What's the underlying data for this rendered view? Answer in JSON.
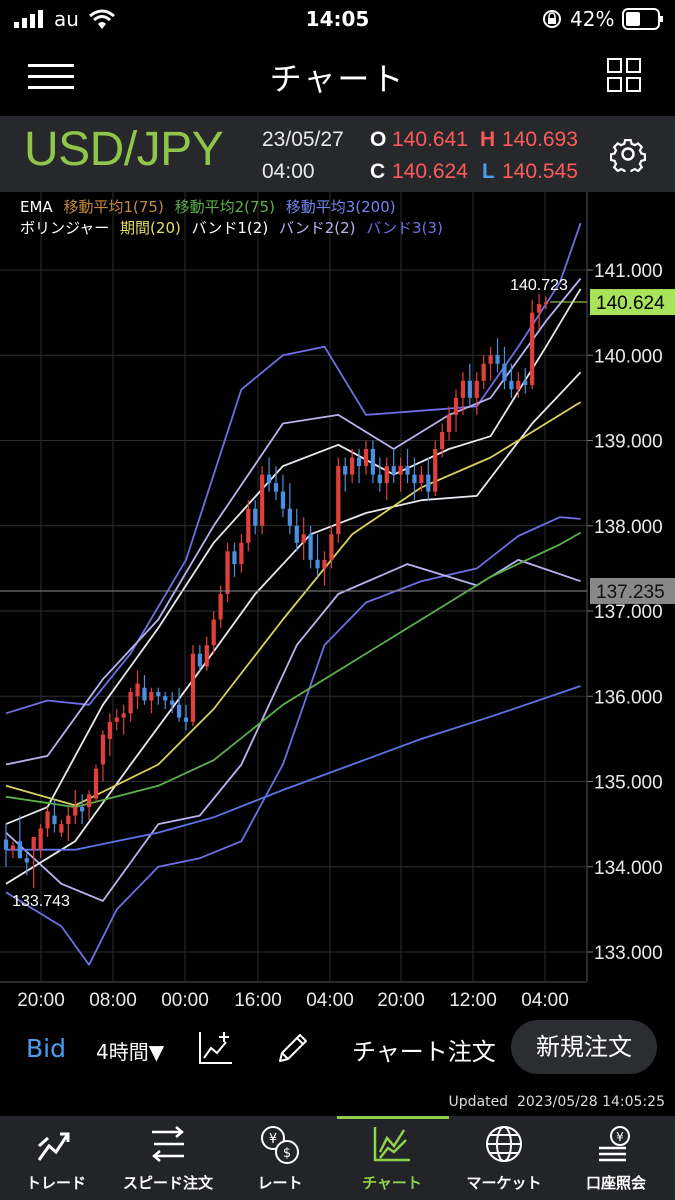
{
  "status_bar": {
    "carrier": "au",
    "time": "14:05",
    "battery": "42%"
  },
  "nav": {
    "title": "チャート"
  },
  "quote": {
    "pair": "USD/JPY",
    "date": "23/05/27",
    "time": "04:00",
    "open_label": "O",
    "open": "140.641",
    "high_label": "H",
    "high": "140.693",
    "close_label": "C",
    "close": "140.624",
    "low_label": "L",
    "low": "140.545"
  },
  "legend": {
    "ema_label": "EMA",
    "ema1": "移動平均1(75)",
    "ema2": "移動平均2(75)",
    "ema3": "移動平均3(200)",
    "bb_label": "ボリンジャー",
    "bb_period": "期間(20)",
    "bb_band1": "バンド1(2)",
    "bb_band2": "バンド2(2)",
    "bb_band3": "バンド3(3)"
  },
  "colors": {
    "bull": "#e0403c",
    "bear": "#4a8fe0",
    "ema1": "#d7d35a",
    "ema2": "#5ab04a",
    "ema3": "#5b74e6",
    "band1": "#e8e8f0",
    "band2": "#b9b3f0",
    "band3": "#6f6ee4",
    "current_price_bg": "#a9e35b",
    "ref_price_bg": "#888888"
  },
  "chart_data": {
    "type": "candlestick",
    "y_ticks": [
      "141.000",
      "140.000",
      "139.000",
      "138.000",
      "137.000",
      "136.000",
      "135.000",
      "134.000",
      "133.000"
    ],
    "x_ticks": [
      "20:00",
      "08:00",
      "00:00",
      "16:00",
      "04:00",
      "20:00",
      "12:00",
      "04:00"
    ],
    "ylim": [
      132.6,
      141.9
    ],
    "current_price": "140.624",
    "ref_price": "137.235",
    "high_marker": "140.723",
    "low_marker": "133.743",
    "ema1": [
      [
        0,
        134.95
      ],
      [
        10,
        134.72
      ],
      [
        22,
        135.2
      ],
      [
        30,
        135.85
      ],
      [
        40,
        136.9
      ],
      [
        50,
        137.9
      ],
      [
        60,
        138.45
      ],
      [
        70,
        138.8
      ],
      [
        83,
        139.45
      ]
    ],
    "ema2": [
      [
        0,
        134.82
      ],
      [
        10,
        134.7
      ],
      [
        22,
        134.95
      ],
      [
        30,
        135.25
      ],
      [
        40,
        135.9
      ],
      [
        50,
        136.4
      ],
      [
        60,
        136.9
      ],
      [
        70,
        137.4
      ],
      [
        80,
        137.78
      ],
      [
        83,
        137.92
      ]
    ],
    "ema3": [
      [
        0,
        134.2
      ],
      [
        10,
        134.2
      ],
      [
        22,
        134.4
      ],
      [
        30,
        134.58
      ],
      [
        40,
        134.9
      ],
      [
        50,
        135.2
      ],
      [
        60,
        135.5
      ],
      [
        70,
        135.76
      ],
      [
        83,
        136.12
      ]
    ],
    "band1_upper": [
      [
        0,
        134.5
      ],
      [
        6,
        134.7
      ],
      [
        14,
        135.9
      ],
      [
        22,
        136.8
      ],
      [
        30,
        137.8
      ],
      [
        40,
        138.7
      ],
      [
        48,
        138.95
      ],
      [
        56,
        138.6
      ],
      [
        64,
        138.9
      ],
      [
        70,
        139.05
      ],
      [
        78,
        140.1
      ],
      [
        83,
        140.78
      ]
    ],
    "band1_lower": [
      [
        0,
        133.8
      ],
      [
        10,
        134.3
      ],
      [
        18,
        135.2
      ],
      [
        28,
        136.3
      ],
      [
        36,
        137.2
      ],
      [
        44,
        137.9
      ],
      [
        52,
        138.15
      ],
      [
        60,
        138.3
      ],
      [
        68,
        138.35
      ],
      [
        76,
        139.2
      ],
      [
        83,
        139.8
      ]
    ],
    "band2_upper": [
      [
        0,
        135.2
      ],
      [
        6,
        135.3
      ],
      [
        14,
        136.2
      ],
      [
        22,
        136.9
      ],
      [
        30,
        138.0
      ],
      [
        40,
        139.2
      ],
      [
        48,
        139.3
      ],
      [
        56,
        138.9
      ],
      [
        64,
        139.3
      ],
      [
        70,
        139.5
      ],
      [
        78,
        140.4
      ],
      [
        83,
        140.9
      ]
    ],
    "band2_lower": [
      [
        0,
        134.4
      ],
      [
        8,
        133.8
      ],
      [
        14,
        133.6
      ],
      [
        22,
        134.5
      ],
      [
        28,
        134.6
      ],
      [
        34,
        135.2
      ],
      [
        42,
        136.6
      ],
      [
        48,
        137.2
      ],
      [
        58,
        137.55
      ],
      [
        68,
        137.3
      ],
      [
        74,
        137.6
      ],
      [
        83,
        137.35
      ]
    ],
    "band3_upper": [
      [
        0,
        135.8
      ],
      [
        6,
        135.95
      ],
      [
        12,
        135.9
      ],
      [
        18,
        136.5
      ],
      [
        26,
        137.6
      ],
      [
        34,
        139.6
      ],
      [
        40,
        140.0
      ],
      [
        46,
        140.1
      ],
      [
        52,
        139.3
      ],
      [
        60,
        139.35
      ],
      [
        68,
        139.4
      ],
      [
        74,
        140.1
      ],
      [
        80,
        140.85
      ],
      [
        83,
        141.55
      ]
    ],
    "band3_lower": [
      [
        0,
        133.7
      ],
      [
        8,
        133.3
      ],
      [
        12,
        132.85
      ],
      [
        16,
        133.5
      ],
      [
        22,
        134.0
      ],
      [
        28,
        134.1
      ],
      [
        34,
        134.3
      ],
      [
        40,
        135.2
      ],
      [
        46,
        136.6
      ],
      [
        52,
        137.1
      ],
      [
        60,
        137.35
      ],
      [
        68,
        137.5
      ],
      [
        74,
        137.88
      ],
      [
        80,
        138.1
      ],
      [
        83,
        138.08
      ]
    ],
    "candles": [
      [
        134.32,
        134.5,
        134.0,
        134.2
      ],
      [
        134.2,
        134.3,
        134.1,
        134.25
      ],
      [
        134.3,
        134.6,
        134.1,
        134.1
      ],
      [
        134.1,
        134.2,
        133.9,
        134.05
      ],
      [
        134.2,
        134.3,
        133.75,
        134.35
      ],
      [
        134.2,
        134.5,
        134.1,
        134.45
      ],
      [
        134.45,
        134.7,
        134.35,
        134.65
      ],
      [
        134.6,
        134.8,
        134.4,
        134.5
      ],
      [
        134.4,
        134.55,
        134.35,
        134.5
      ],
      [
        134.5,
        134.7,
        134.3,
        134.6
      ],
      [
        134.6,
        134.9,
        134.5,
        134.7
      ],
      [
        134.7,
        134.85,
        134.5,
        134.65
      ],
      [
        134.7,
        134.9,
        134.55,
        134.85
      ],
      [
        134.8,
        135.2,
        134.75,
        135.15
      ],
      [
        135.2,
        135.6,
        135.0,
        135.55
      ],
      [
        135.5,
        135.8,
        135.3,
        135.7
      ],
      [
        135.7,
        135.85,
        135.6,
        135.75
      ],
      [
        135.75,
        135.9,
        135.55,
        135.8
      ],
      [
        135.8,
        136.1,
        135.7,
        136.05
      ],
      [
        136.0,
        136.3,
        135.85,
        136.15
      ],
      [
        136.1,
        136.25,
        135.9,
        135.95
      ],
      [
        135.95,
        136.1,
        135.8,
        136.05
      ],
      [
        136.05,
        136.1,
        135.9,
        136.0
      ],
      [
        136.0,
        136.05,
        135.85,
        135.95
      ],
      [
        135.95,
        136.05,
        135.8,
        135.9
      ],
      [
        135.9,
        136.1,
        135.7,
        135.75
      ],
      [
        135.75,
        135.9,
        135.6,
        135.7
      ],
      [
        135.7,
        136.6,
        135.65,
        136.5
      ],
      [
        136.5,
        136.6,
        136.3,
        136.35
      ],
      [
        136.35,
        136.7,
        136.3,
        136.6
      ],
      [
        136.6,
        137.0,
        136.5,
        136.9
      ],
      [
        136.9,
        137.3,
        136.8,
        137.2
      ],
      [
        137.2,
        137.8,
        137.1,
        137.7
      ],
      [
        137.7,
        137.8,
        137.4,
        137.55
      ],
      [
        137.55,
        137.9,
        137.45,
        137.8
      ],
      [
        137.8,
        138.3,
        137.7,
        138.2
      ],
      [
        138.2,
        138.3,
        137.9,
        138.0
      ],
      [
        138.0,
        138.7,
        137.9,
        138.6
      ],
      [
        138.6,
        138.8,
        138.4,
        138.5
      ],
      [
        138.5,
        138.7,
        138.3,
        138.4
      ],
      [
        138.4,
        138.6,
        138.1,
        138.2
      ],
      [
        138.2,
        138.5,
        137.9,
        138.0
      ],
      [
        138.0,
        138.2,
        137.7,
        137.8
      ],
      [
        137.8,
        138.1,
        137.6,
        137.9
      ],
      [
        137.9,
        138.0,
        137.5,
        137.6
      ],
      [
        137.6,
        137.9,
        137.4,
        137.5
      ],
      [
        137.5,
        137.7,
        137.3,
        137.6
      ],
      [
        137.6,
        138.0,
        137.5,
        137.9
      ],
      [
        137.9,
        138.8,
        137.8,
        138.7
      ],
      [
        138.7,
        138.8,
        138.4,
        138.6
      ],
      [
        138.6,
        138.9,
        138.5,
        138.8
      ],
      [
        138.8,
        138.9,
        138.5,
        138.7
      ],
      [
        138.7,
        139.0,
        138.6,
        138.9
      ],
      [
        138.9,
        139.0,
        138.5,
        138.6
      ],
      [
        138.6,
        138.8,
        138.4,
        138.5
      ],
      [
        138.5,
        138.8,
        138.3,
        138.7
      ],
      [
        138.7,
        138.9,
        138.5,
        138.6
      ],
      [
        138.6,
        138.8,
        138.4,
        138.7
      ],
      [
        138.7,
        138.9,
        138.5,
        138.6
      ],
      [
        138.6,
        138.8,
        138.3,
        138.5
      ],
      [
        138.5,
        138.7,
        138.4,
        138.6
      ],
      [
        138.6,
        138.8,
        138.3,
        138.4
      ],
      [
        138.4,
        139.0,
        138.35,
        138.9
      ],
      [
        138.9,
        139.2,
        138.8,
        139.1
      ],
      [
        139.1,
        139.4,
        139.0,
        139.3
      ],
      [
        139.3,
        139.6,
        139.1,
        139.5
      ],
      [
        139.5,
        139.8,
        139.3,
        139.7
      ],
      [
        139.7,
        139.9,
        139.4,
        139.5
      ],
      [
        139.5,
        139.8,
        139.3,
        139.7
      ],
      [
        139.7,
        140.0,
        139.6,
        139.9
      ],
      [
        139.9,
        140.1,
        139.7,
        140.0
      ],
      [
        140.0,
        140.2,
        139.8,
        139.9
      ],
      [
        139.9,
        140.1,
        139.6,
        139.7
      ],
      [
        139.7,
        139.9,
        139.5,
        139.6
      ],
      [
        139.6,
        139.8,
        139.5,
        139.7
      ],
      [
        139.7,
        139.85,
        139.55,
        139.65
      ],
      [
        139.65,
        140.65,
        139.6,
        140.5
      ],
      [
        140.5,
        140.72,
        140.3,
        140.6
      ],
      [
        140.6,
        140.69,
        140.54,
        140.62
      ]
    ]
  },
  "toolbar": {
    "bid": "Bid",
    "timeframe": "4時間▼",
    "chart_order": "チャート注文",
    "new_order": "新規注文"
  },
  "updated": "Updated  2023/05/28 14:05:25",
  "tabs": [
    {
      "label": "トレード",
      "icon": "trade-icon"
    },
    {
      "label": "スピード注文",
      "icon": "speed-order-icon"
    },
    {
      "label": "レート",
      "icon": "rate-icon"
    },
    {
      "label": "チャート",
      "icon": "chart-icon"
    },
    {
      "label": "マーケット",
      "icon": "market-icon"
    },
    {
      "label": "口座照会",
      "icon": "account-icon"
    }
  ]
}
